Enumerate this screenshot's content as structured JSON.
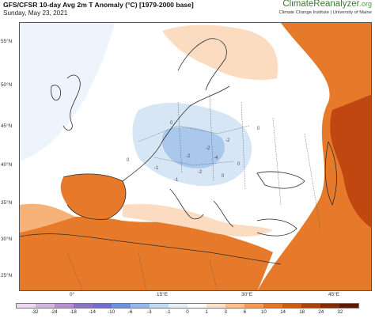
{
  "header": {
    "title": "GFS/CFSR 10-day Avg 2m T Anomaly (°C) [1979-2000 base]",
    "date": "Sunday, May 23, 2021",
    "brand_main": "ClimateReanalyzer",
    "brand_suffix": ".org",
    "brand_subtitle": "Climate Change Institute | University of Maine"
  },
  "map": {
    "lat_labels": [
      "55°N",
      "50°N",
      "45°N",
      "40°N",
      "35°N",
      "30°N",
      "25°N"
    ],
    "lon_labels": [
      "0°",
      "15°E",
      "30°E",
      "45°E"
    ],
    "contour_labels": [
      "0",
      "-2",
      "-2",
      "-1",
      "0",
      "-2",
      "0",
      "0",
      "-1",
      "-4",
      "-2",
      "0"
    ],
    "colors": {
      "strong_warm": "#c0470f",
      "warm": "#e67a2a",
      "mild_warm": "#f6b278",
      "light_warm": "#fbdcc0",
      "neutral": "#ffffff",
      "light_cool": "#d6e6f5",
      "cool": "#a9c8ec",
      "sea_warm": "#f3a86a",
      "coast": "#2b2b2b"
    }
  },
  "colorbar": {
    "ticks": [
      "-32",
      "-24",
      "-18",
      "-14",
      "-10",
      "-6",
      "-3",
      "-1",
      "0",
      "1",
      "3",
      "6",
      "10",
      "14",
      "18",
      "24",
      "32"
    ],
    "colors": [
      "#e9d8f0",
      "#d2b4e0",
      "#b58fd0",
      "#8c73c2",
      "#6f6fc9",
      "#6b93dd",
      "#93b8ea",
      "#c2d9f4",
      "#e4effb",
      "#ffffff",
      "#fde2c8",
      "#fbc08d",
      "#f59a56",
      "#e67427",
      "#cf5a14",
      "#a9420d",
      "#7d2c06",
      "#581b02"
    ]
  }
}
